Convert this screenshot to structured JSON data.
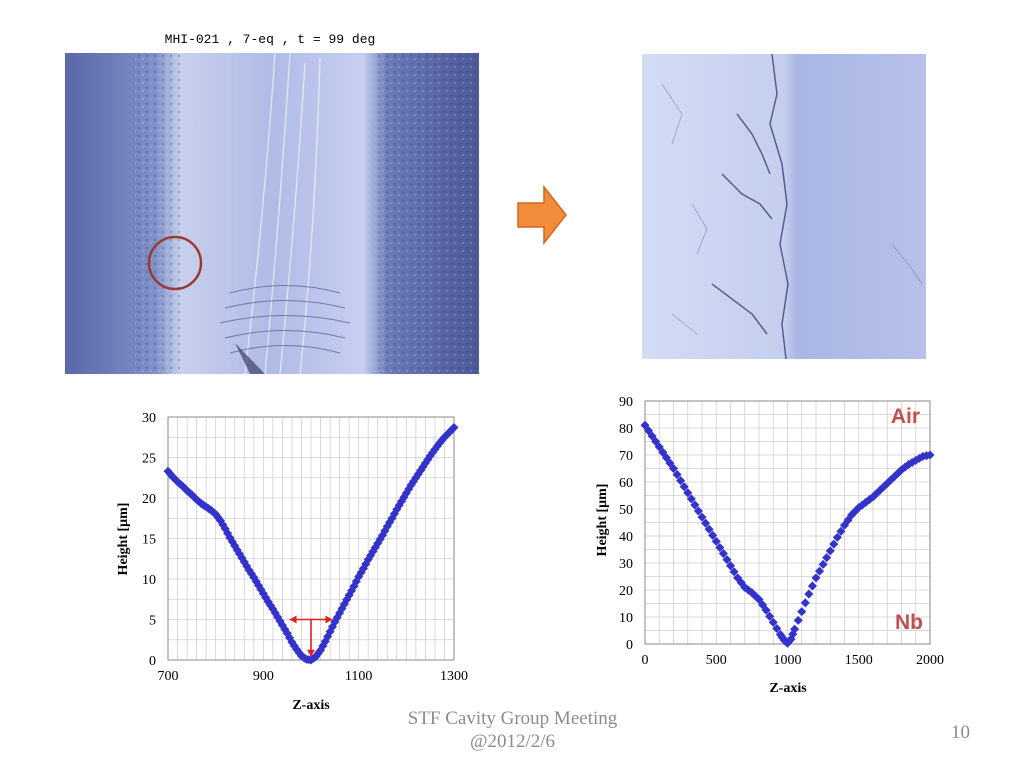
{
  "slide": {
    "photo_caption": "MHI-021 , 7-eq , t = 99 deg",
    "footer": [
      "STF Cavity Group Meeting",
      "@2012/2/6"
    ],
    "page_number": "10",
    "arrow_color": "#f28c3a",
    "circle_color": "#9b3b2e"
  },
  "chart_data": [
    {
      "type": "scatter",
      "title": "",
      "xlabel": "Z-axis",
      "ylabel": "Height [μm]",
      "xlim": [
        700,
        1300
      ],
      "ylim": [
        0,
        30
      ],
      "xticks": [
        700,
        900,
        1100,
        1300
      ],
      "yticks": [
        0,
        5,
        10,
        15,
        20,
        25,
        30
      ],
      "grid": true,
      "color": "#3333cc",
      "annotations": [
        "red horizontal double arrow at y=5 from x~955 to x~1045",
        "red vertical arrow at x~1000 from y~5 to y~0"
      ],
      "series": [
        {
          "x": [
            700,
            710,
            720,
            730,
            740,
            750,
            760,
            770,
            780,
            790,
            800,
            810,
            820,
            830,
            840,
            850,
            860,
            870,
            880,
            890,
            900,
            910,
            920,
            930,
            940,
            950,
            960,
            970,
            980,
            990,
            1000,
            1010,
            1020,
            1030,
            1040,
            1050,
            1060,
            1070,
            1080,
            1090,
            1100,
            1110,
            1120,
            1130,
            1140,
            1150,
            1160,
            1170,
            1180,
            1190,
            1200,
            1210,
            1220,
            1230,
            1240,
            1250,
            1260,
            1270,
            1280,
            1290,
            1300
          ],
          "y": [
            23.3,
            22.6,
            22.0,
            21.5,
            20.9,
            20.4,
            19.8,
            19.3,
            18.9,
            18.5,
            18.0,
            17.2,
            16.2,
            15.1,
            14.1,
            13.1,
            12.1,
            11.1,
            10.2,
            9.2,
            8.2,
            7.2,
            6.3,
            5.3,
            4.3,
            3.3,
            2.2,
            1.3,
            0.5,
            0.1,
            0.0,
            0.4,
            1.2,
            2.3,
            3.5,
            4.7,
            5.8,
            6.9,
            8.0,
            9.1,
            10.3,
            11.3,
            12.4,
            13.4,
            14.4,
            15.4,
            16.5,
            17.5,
            18.6,
            19.6,
            20.6,
            21.6,
            22.5,
            23.4,
            24.3,
            25.2,
            26.0,
            26.8,
            27.5,
            28.1,
            28.7
          ]
        }
      ]
    },
    {
      "type": "scatter",
      "title": "",
      "xlabel": "Z-axis",
      "ylabel": "Height [μm]",
      "xlim": [
        0,
        2000
      ],
      "ylim": [
        0,
        90
      ],
      "xticks": [
        0,
        500,
        1000,
        1500,
        2000
      ],
      "yticks": [
        0,
        10,
        20,
        30,
        40,
        50,
        60,
        70,
        80,
        90
      ],
      "grid": true,
      "color": "#3333cc",
      "labels": [
        {
          "text": "Air",
          "color": "#c0504d"
        },
        {
          "text": "Nb",
          "color": "#c0504d"
        }
      ],
      "series": [
        {
          "x": [
            0,
            50,
            100,
            150,
            200,
            250,
            300,
            350,
            400,
            450,
            500,
            550,
            600,
            650,
            700,
            750,
            800,
            850,
            900,
            950,
            975,
            1000,
            1025,
            1050,
            1100,
            1150,
            1200,
            1250,
            1300,
            1350,
            1400,
            1450,
            1500,
            1550,
            1600,
            1650,
            1700,
            1750,
            1800,
            1850,
            1900,
            1950,
            2000
          ],
          "y": [
            81,
            77,
            73,
            69,
            65,
            60.5,
            56,
            51.5,
            47,
            42.5,
            38,
            33.5,
            29,
            24.5,
            21,
            19,
            16.5,
            12.5,
            8,
            3.5,
            1.5,
            0.3,
            1.8,
            5.5,
            12,
            18.5,
            24.5,
            29.5,
            34.5,
            39.5,
            44,
            47.8,
            50.5,
            52.5,
            54.5,
            57,
            59.5,
            62,
            64.5,
            66.5,
            68,
            69.5,
            70
          ]
        }
      ]
    }
  ]
}
